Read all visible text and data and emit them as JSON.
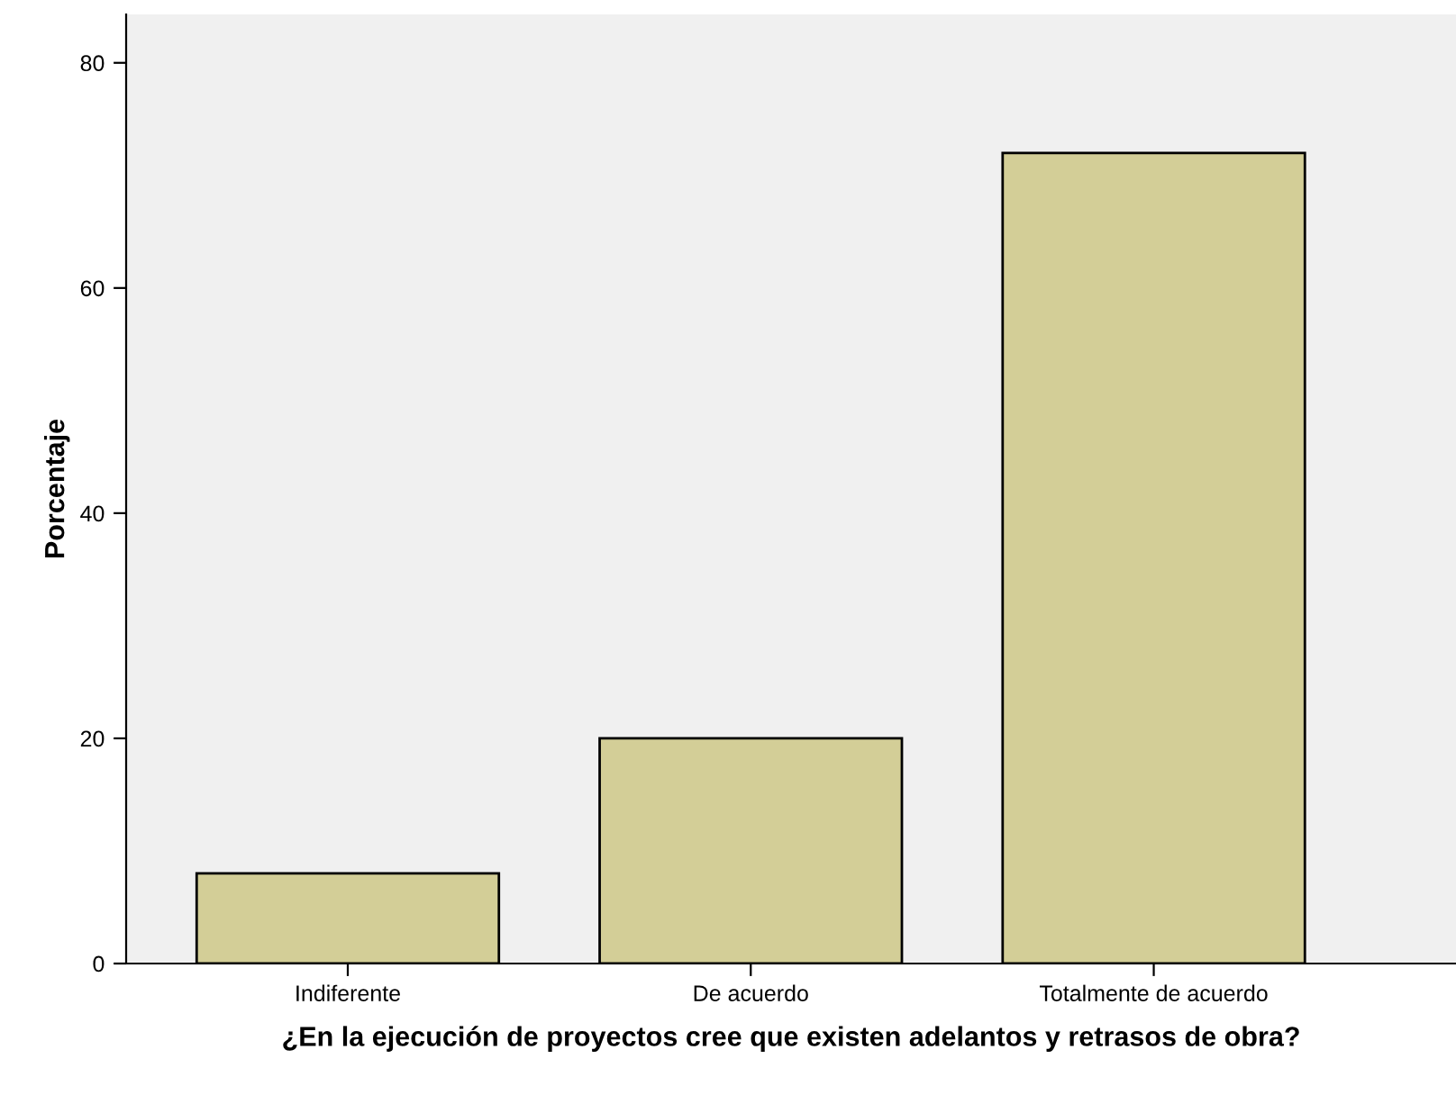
{
  "chart_data": {
    "type": "bar",
    "xlabel": "¿En la ejecución de proyectos cree que existen adelantos y retrasos de obra?",
    "ylabel": "Porcentaje",
    "categories": [
      "Indiferente",
      "De acuerdo",
      "Totalmente de acuerdo"
    ],
    "values": [
      8,
      20,
      72
    ],
    "color": "#d3ce97",
    "ylim": [
      0,
      84.3
    ],
    "yticks": [
      0,
      20,
      40,
      60,
      80
    ],
    "grid": false
  }
}
